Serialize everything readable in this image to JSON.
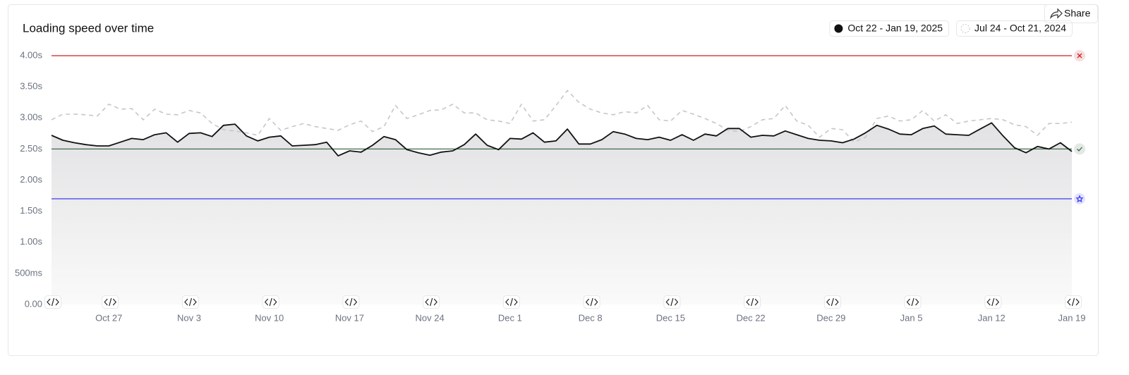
{
  "chart_data": {
    "type": "line",
    "title": "Loading speed over time",
    "share_label": "Share",
    "categories": [
      null,
      null,
      null,
      null,
      null,
      "Oct 27",
      null,
      null,
      null,
      null,
      null,
      null,
      "Nov 3",
      null,
      null,
      null,
      null,
      null,
      null,
      "Nov 10",
      null,
      null,
      null,
      null,
      null,
      null,
      "Nov 17",
      null,
      null,
      null,
      null,
      null,
      null,
      "Nov 24",
      null,
      null,
      null,
      null,
      null,
      null,
      "Dec 1",
      null,
      null,
      null,
      null,
      null,
      null,
      "Dec 8",
      null,
      null,
      null,
      null,
      null,
      null,
      "Dec 15",
      null,
      null,
      null,
      null,
      null,
      null,
      "Dec 22",
      null,
      null,
      null,
      null,
      null,
      null,
      "Dec 29",
      null,
      null,
      null,
      null,
      null,
      null,
      "Jan 5",
      null,
      null,
      null,
      null,
      null,
      null,
      "Jan 12",
      null,
      null,
      null,
      null,
      null,
      null,
      "Jan 19"
    ],
    "series": [
      {
        "name": "Oct 22 - Jan 19, 2025",
        "color": "#111111",
        "values": [
          2.72,
          2.64,
          2.6,
          2.57,
          2.55,
          2.55,
          2.61,
          2.67,
          2.65,
          2.73,
          2.76,
          2.61,
          2.75,
          2.76,
          2.7,
          2.88,
          2.9,
          2.71,
          2.63,
          2.69,
          2.71,
          2.55,
          2.56,
          2.57,
          2.61,
          2.39,
          2.47,
          2.45,
          2.56,
          2.7,
          2.65,
          2.49,
          2.44,
          2.4,
          2.45,
          2.47,
          2.57,
          2.74,
          2.56,
          2.49,
          2.67,
          2.66,
          2.76,
          2.61,
          2.63,
          2.82,
          2.58,
          2.58,
          2.65,
          2.78,
          2.74,
          2.67,
          2.65,
          2.69,
          2.64,
          2.73,
          2.64,
          2.74,
          2.71,
          2.83,
          2.83,
          2.69,
          2.72,
          2.71,
          2.79,
          2.73,
          2.67,
          2.64,
          2.63,
          2.6,
          2.66,
          2.76,
          2.88,
          2.82,
          2.74,
          2.73,
          2.83,
          2.87,
          2.74,
          2.73,
          2.72,
          2.82,
          2.92,
          2.71,
          2.52,
          2.44,
          2.54,
          2.5,
          2.6,
          2.46
        ]
      },
      {
        "name": "Jul 24 - Oct 21, 2024",
        "color": "#c4c7cc",
        "dashed": true,
        "values": [
          2.97,
          3.06,
          3.06,
          3.05,
          3.03,
          3.22,
          3.14,
          3.15,
          2.97,
          3.14,
          3.06,
          3.05,
          3.12,
          3.08,
          2.91,
          2.81,
          2.79,
          2.76,
          2.72,
          2.99,
          2.8,
          2.86,
          2.91,
          2.86,
          2.83,
          2.8,
          2.89,
          2.95,
          2.78,
          2.86,
          3.2,
          2.99,
          3.05,
          3.12,
          3.13,
          3.22,
          3.08,
          3.08,
          2.97,
          2.95,
          2.91,
          3.22,
          2.95,
          2.97,
          3.2,
          3.44,
          3.25,
          3.14,
          3.08,
          3.05,
          3.1,
          3.08,
          3.2,
          2.97,
          2.95,
          3.12,
          3.06,
          2.99,
          2.91,
          2.8,
          2.78,
          2.86,
          2.97,
          2.99,
          3.2,
          2.95,
          2.88,
          2.69,
          2.83,
          2.81,
          2.61,
          2.69,
          2.99,
          3.03,
          2.95,
          2.97,
          3.12,
          2.95,
          3.05,
          2.91,
          2.95,
          2.97,
          2.99,
          2.97,
          2.89,
          2.86,
          2.72,
          2.91,
          2.91,
          2.93
        ]
      }
    ],
    "thresholds": [
      {
        "value": 4,
        "color": "#cc2222"
      },
      {
        "value": 2.5,
        "color": "#3d6b4c"
      },
      {
        "value": 1.7,
        "color": "#3d3df0"
      }
    ],
    "ylim": [
      0,
      4
    ],
    "yticks": [
      {
        "value": 0,
        "label": "0.00"
      },
      {
        "value": 0.5,
        "label": "500ms"
      },
      {
        "value": 1,
        "label": "1.00s"
      },
      {
        "value": 1.5,
        "label": "1.50s"
      },
      {
        "value": 2,
        "label": "2.00s"
      },
      {
        "value": 2.5,
        "label": "2.50s"
      },
      {
        "value": 3,
        "label": "3.00s"
      },
      {
        "value": 3.5,
        "label": "3.50s"
      },
      {
        "value": 4,
        "label": "4.00s"
      }
    ]
  }
}
